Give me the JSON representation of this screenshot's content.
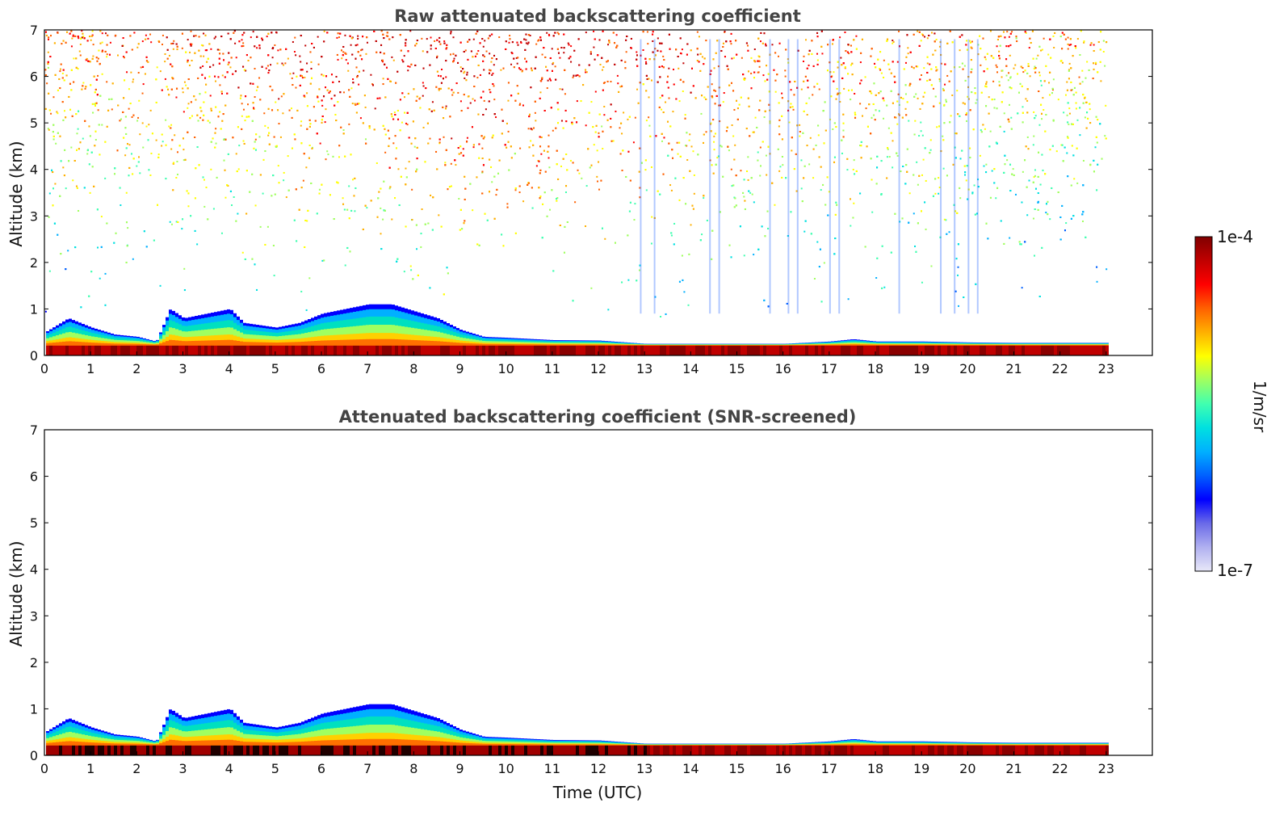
{
  "chart_data": [
    {
      "type": "heatmap",
      "title": "Raw attenuated backscattering coefficient",
      "xlabel": "",
      "ylabel": "Altitude (km)",
      "xlim": [
        0,
        24
      ],
      "ylim": [
        0,
        7
      ],
      "x_ticks": [
        "0",
        "1",
        "2",
        "3",
        "4",
        "5",
        "6",
        "7",
        "8",
        "9",
        "10",
        "11",
        "12",
        "13",
        "14",
        "15",
        "16",
        "17",
        "18",
        "19",
        "20",
        "21",
        "22",
        "23"
      ],
      "y_ticks": [
        "0",
        "1",
        "2",
        "3",
        "4",
        "5",
        "6",
        "7"
      ],
      "data_end_hour": 23,
      "boundary_layer_top_km": [
        [
          0,
          0.5
        ],
        [
          0.5,
          0.8
        ],
        [
          1,
          0.6
        ],
        [
          1.5,
          0.45
        ],
        [
          2,
          0.4
        ],
        [
          2.4,
          0.3
        ],
        [
          2.7,
          1.0
        ],
        [
          3,
          0.8
        ],
        [
          3.5,
          0.9
        ],
        [
          4,
          1.0
        ],
        [
          4.3,
          0.7
        ],
        [
          5,
          0.6
        ],
        [
          5.5,
          0.7
        ],
        [
          6,
          0.9
        ],
        [
          6.5,
          1.0
        ],
        [
          7,
          1.1
        ],
        [
          7.5,
          1.1
        ],
        [
          8,
          0.95
        ],
        [
          8.5,
          0.8
        ],
        [
          9,
          0.55
        ],
        [
          9.5,
          0.4
        ],
        [
          10,
          0.38
        ],
        [
          11,
          0.33
        ],
        [
          12,
          0.32
        ],
        [
          13,
          0.25
        ],
        [
          14,
          0.25
        ],
        [
          15,
          0.25
        ],
        [
          16,
          0.25
        ],
        [
          17,
          0.3
        ],
        [
          17.5,
          0.35
        ],
        [
          18,
          0.3
        ],
        [
          19,
          0.3
        ],
        [
          20,
          0.28
        ],
        [
          21,
          0.27
        ],
        [
          22,
          0.27
        ],
        [
          23,
          0.27
        ]
      ]
    },
    {
      "type": "heatmap",
      "title": "Attenuated backscattering coefficient (SNR-screened)",
      "xlabel": "Time (UTC)",
      "ylabel": "Altitude (km)",
      "xlim": [
        0,
        24
      ],
      "ylim": [
        0,
        7
      ],
      "x_ticks": [
        "0",
        "1",
        "2",
        "3",
        "4",
        "5",
        "6",
        "7",
        "8",
        "9",
        "10",
        "11",
        "12",
        "13",
        "14",
        "15",
        "16",
        "17",
        "18",
        "19",
        "20",
        "21",
        "22",
        "23"
      ],
      "y_ticks": [
        "0",
        "1",
        "2",
        "3",
        "4",
        "5",
        "6",
        "7"
      ],
      "data_end_hour": 23
    }
  ],
  "colorbar": {
    "label": "1/m/sr",
    "max_label": "1e-4",
    "min_label": "1e-7",
    "scale": "log",
    "colormap": [
      "#e8e8f8",
      "#b0b0f0",
      "#6a6ae8",
      "#0000ff",
      "#0060ff",
      "#00b0ff",
      "#00e0e0",
      "#40ffb0",
      "#a0ff60",
      "#ffff00",
      "#ffb000",
      "#ff6000",
      "#ff0000",
      "#c00000",
      "#800000"
    ]
  }
}
